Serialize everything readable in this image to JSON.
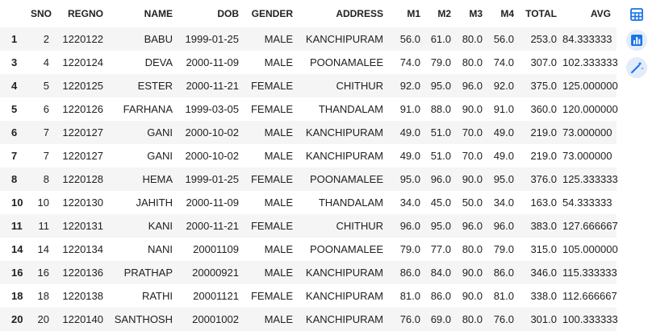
{
  "table": {
    "columns": [
      "",
      "SNO",
      "REGNO",
      "NAME",
      "DOB",
      "GENDER",
      "ADDRESS",
      "M1",
      "M2",
      "M3",
      "M4",
      "TOTAL",
      "AVG"
    ],
    "rows": [
      [
        "1",
        "2",
        "1220122",
        "BABU",
        "1999-01-25",
        "MALE",
        "KANCHIPURAM",
        "56.0",
        "61.0",
        "80.0",
        "56.0",
        "253.0",
        "84.333333"
      ],
      [
        "3",
        "4",
        "1220124",
        "DEVA",
        "2000-11-09",
        "MALE",
        "POONAMALEE",
        "74.0",
        "79.0",
        "80.0",
        "74.0",
        "307.0",
        "102.333333"
      ],
      [
        "4",
        "5",
        "1220125",
        "ESTER",
        "2000-11-21",
        "FEMALE",
        "CHITHUR",
        "92.0",
        "95.0",
        "96.0",
        "92.0",
        "375.0",
        "125.000000"
      ],
      [
        "5",
        "6",
        "1220126",
        "FARHANA",
        "1999-03-05",
        "FEMALE",
        "THANDALAM",
        "91.0",
        "88.0",
        "90.0",
        "91.0",
        "360.0",
        "120.000000"
      ],
      [
        "6",
        "7",
        "1220127",
        "GANI",
        "2000-10-02",
        "MALE",
        "KANCHIPURAM",
        "49.0",
        "51.0",
        "70.0",
        "49.0",
        "219.0",
        "73.000000"
      ],
      [
        "7",
        "7",
        "1220127",
        "GANI",
        "2000-10-02",
        "MALE",
        "KANCHIPURAM",
        "49.0",
        "51.0",
        "70.0",
        "49.0",
        "219.0",
        "73.000000"
      ],
      [
        "8",
        "8",
        "1220128",
        "HEMA",
        "1999-01-25",
        "FEMALE",
        "POONAMALEE",
        "95.0",
        "96.0",
        "90.0",
        "95.0",
        "376.0",
        "125.333333"
      ],
      [
        "10",
        "10",
        "1220130",
        "JAHITH",
        "2000-11-09",
        "MALE",
        "THANDALAM",
        "34.0",
        "45.0",
        "50.0",
        "34.0",
        "163.0",
        "54.333333"
      ],
      [
        "11",
        "11",
        "1220131",
        "KANI",
        "2000-11-21",
        "FEMALE",
        "CHITHUR",
        "96.0",
        "95.0",
        "96.0",
        "96.0",
        "383.0",
        "127.666667"
      ],
      [
        "14",
        "14",
        "1220134",
        "NANI",
        "20001109",
        "MALE",
        "POONAMALEE",
        "79.0",
        "77.0",
        "80.0",
        "79.0",
        "315.0",
        "105.000000"
      ],
      [
        "16",
        "16",
        "1220136",
        "PRATHAP",
        "20000921",
        "MALE",
        "KANCHIPURAM",
        "86.0",
        "84.0",
        "90.0",
        "86.0",
        "346.0",
        "115.333333"
      ],
      [
        "18",
        "18",
        "1220138",
        "RATHI",
        "20001121",
        "FEMALE",
        "KANCHIPURAM",
        "81.0",
        "86.0",
        "90.0",
        "81.0",
        "338.0",
        "112.666667"
      ],
      [
        "20",
        "20",
        "1220140",
        "SANTHOSH",
        "20001002",
        "MALE",
        "KANCHIPURAM",
        "76.0",
        "69.0",
        "80.0",
        "76.0",
        "301.0",
        "100.333333"
      ]
    ]
  },
  "toolbar": {
    "buttons": [
      {
        "name": "table-icon",
        "color": "#1a73e8"
      },
      {
        "name": "bar-chart-icon",
        "color": "#1a73e8"
      },
      {
        "name": "magic-wand-icon",
        "color": "#1a73e8"
      }
    ]
  }
}
